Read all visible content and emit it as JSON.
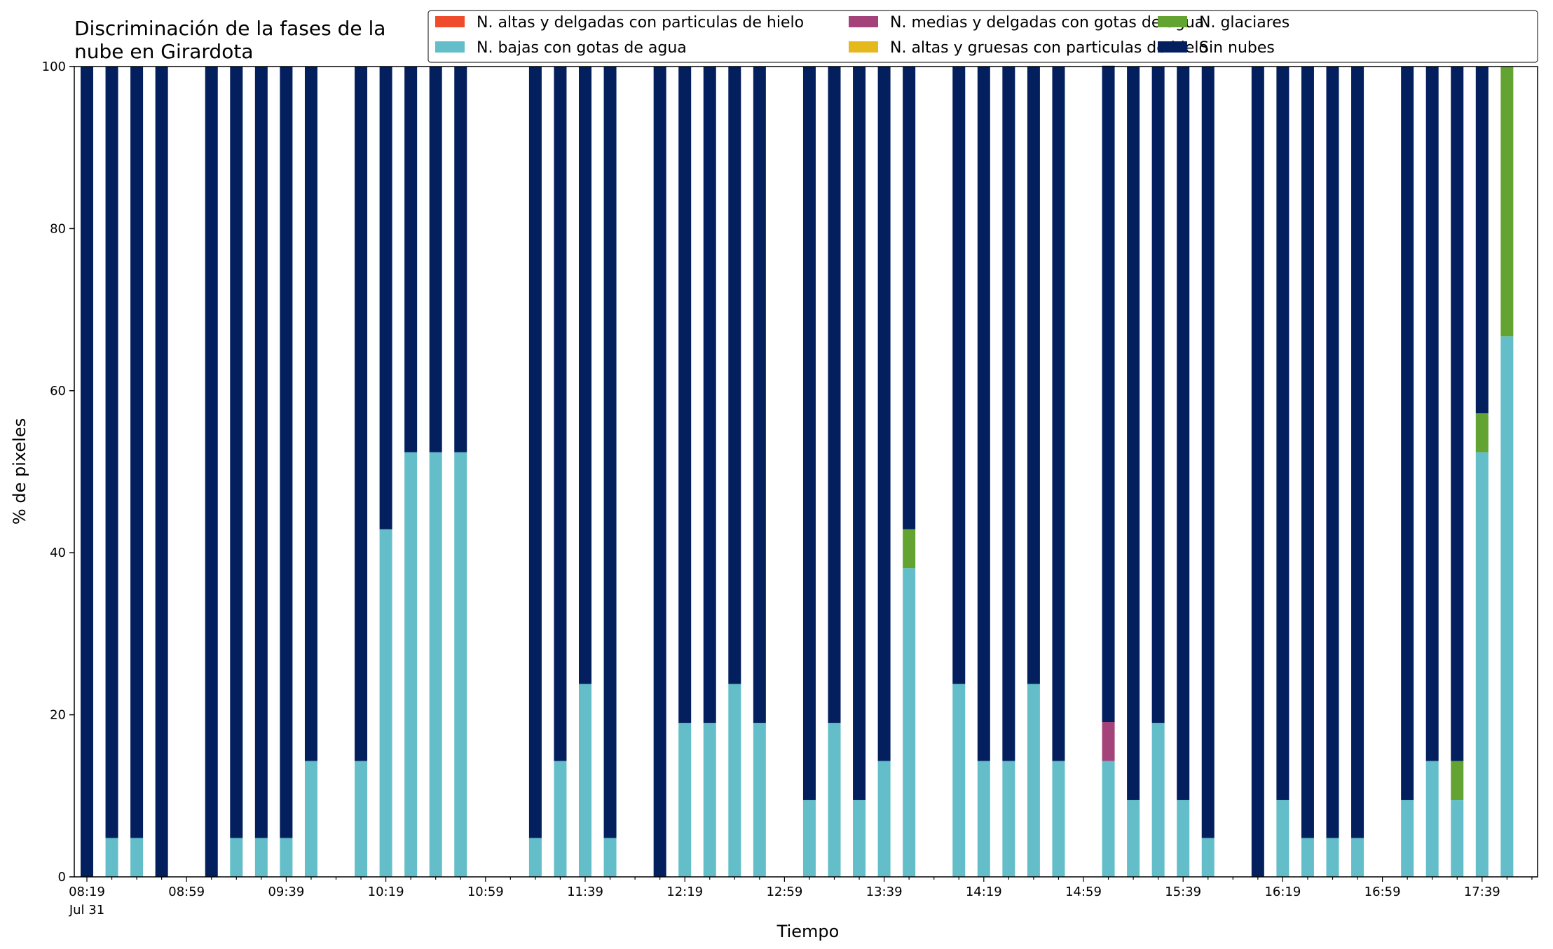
{
  "chart_data": {
    "type": "bar",
    "stacked": true,
    "title_lines": [
      "Discriminación de la fases de la",
      "nube en Girardota"
    ],
    "xlabel": "Tiempo",
    "ylabel": "% de pixeles",
    "ylim": [
      0,
      100
    ],
    "yticks": [
      "0",
      "20",
      "40",
      "60",
      "80",
      "100"
    ],
    "xtick_labels": [
      "08:19",
      "08:59",
      "09:39",
      "10:19",
      "10:59",
      "11:39",
      "12:19",
      "12:59",
      "13:39",
      "14:19",
      "14:59",
      "15:39",
      "16:19",
      "16:59",
      "17:39"
    ],
    "date_label": "Jul 31",
    "slot_minutes": 10,
    "start_time": "08:19",
    "legend_position": "upper-right",
    "grid": false,
    "bar_times": [
      "08:19",
      "08:29",
      "08:39",
      "08:49",
      "09:09",
      "09:19",
      "09:29",
      "09:39",
      "09:49",
      "10:09",
      "10:19",
      "10:29",
      "10:39",
      "10:49",
      "11:19",
      "11:29",
      "11:39",
      "11:49",
      "12:09",
      "12:19",
      "12:29",
      "12:39",
      "12:49",
      "13:09",
      "13:19",
      "13:29",
      "13:39",
      "13:49",
      "14:09",
      "14:19",
      "14:29",
      "14:39",
      "14:49",
      "15:09",
      "15:19",
      "15:29",
      "15:39",
      "15:49",
      "16:09",
      "16:19",
      "16:29",
      "16:39",
      "16:49",
      "17:09",
      "17:19",
      "17:29",
      "17:39",
      "17:49"
    ],
    "series": [
      {
        "name": "N. altas y delgadas con particulas de hielo",
        "color": "#ef4b2d",
        "values": [
          0,
          0,
          0,
          0,
          0,
          0,
          0,
          0,
          0,
          0,
          0,
          0,
          0,
          0,
          0,
          0,
          0,
          0,
          0,
          0,
          0,
          0,
          0,
          0,
          0,
          0,
          0,
          0,
          0,
          0,
          0,
          0,
          0,
          0,
          0,
          0,
          0,
          0,
          0,
          0,
          0,
          0,
          0,
          0,
          0,
          0,
          0,
          0
        ]
      },
      {
        "name": "N. altas y gruesas con particulas de hielo",
        "color": "#e5b91c",
        "values": [
          0,
          0,
          0,
          0,
          0,
          0,
          0,
          0,
          0,
          0,
          0,
          0,
          0,
          0,
          0,
          0,
          0,
          0,
          0,
          0,
          0,
          0,
          0,
          0,
          0,
          0,
          0,
          0,
          0,
          0,
          0,
          0,
          0,
          0,
          0,
          0,
          0,
          0,
          0,
          0,
          0,
          0,
          0,
          0,
          0,
          0,
          0,
          0
        ]
      },
      {
        "name": "N. bajas con gotas de agua",
        "color": "#64bec9",
        "values": [
          0,
          4.8,
          4.8,
          0,
          0,
          4.8,
          4.8,
          4.8,
          14.3,
          14.3,
          42.9,
          52.4,
          52.4,
          52.4,
          4.8,
          14.3,
          23.8,
          4.8,
          0,
          19.0,
          19.0,
          23.8,
          19.0,
          9.5,
          19.0,
          9.5,
          14.3,
          38.1,
          23.8,
          14.3,
          14.3,
          23.8,
          14.3,
          14.3,
          9.5,
          19.0,
          9.5,
          4.8,
          0,
          9.5,
          4.8,
          4.8,
          4.8,
          9.5,
          14.3,
          9.5,
          52.4,
          66.7
        ]
      },
      {
        "name": "N. glaciares",
        "color": "#63a331",
        "values": [
          0,
          0,
          0,
          0,
          0,
          0,
          0,
          0,
          0,
          0,
          0,
          0,
          0,
          0,
          0,
          0,
          0,
          0,
          0,
          0,
          0,
          0,
          0,
          0,
          0,
          0,
          0,
          4.8,
          0,
          0,
          0,
          0,
          0,
          0,
          0,
          0,
          0,
          0,
          0,
          0,
          0,
          0,
          0,
          0,
          0,
          4.8,
          4.8,
          33.3
        ]
      },
      {
        "name": "N. medias y delgadas con gotas de agua",
        "color": "#a3437a",
        "values": [
          0,
          0,
          0,
          0,
          0,
          0,
          0,
          0,
          0,
          0,
          0,
          0,
          0,
          0,
          0,
          0,
          0,
          0,
          0,
          0,
          0,
          0,
          0,
          0,
          0,
          0,
          0,
          0,
          0,
          0,
          0,
          0,
          0,
          4.8,
          0,
          0,
          0,
          0,
          0,
          0,
          0,
          0,
          0,
          0,
          0,
          0,
          0,
          0
        ]
      },
      {
        "name": "Sin nubes",
        "color": "#031f5e",
        "values": [
          100,
          95.2,
          95.2,
          100,
          100,
          95.2,
          95.2,
          95.2,
          85.7,
          85.7,
          57.1,
          47.6,
          47.6,
          47.6,
          95.2,
          85.7,
          76.2,
          95.2,
          100,
          81.0,
          81.0,
          76.2,
          81.0,
          90.5,
          81.0,
          90.5,
          85.7,
          57.1,
          76.2,
          85.7,
          85.7,
          76.2,
          85.7,
          81.0,
          90.5,
          81.0,
          90.5,
          95.2,
          100,
          90.5,
          95.2,
          95.2,
          95.2,
          90.5,
          85.7,
          85.7,
          42.8,
          0
        ]
      }
    ],
    "legend_order": [
      0,
      2,
      4,
      1,
      3,
      5
    ]
  }
}
